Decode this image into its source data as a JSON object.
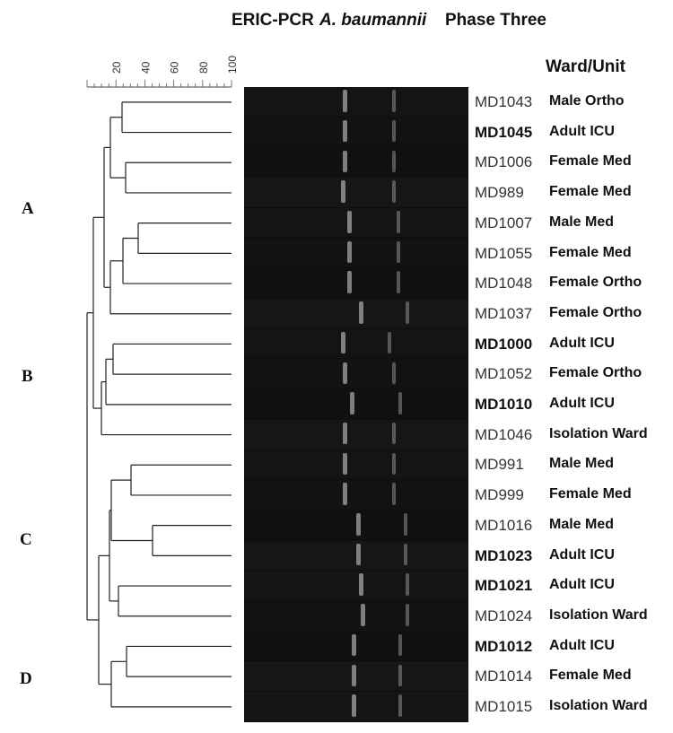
{
  "title": {
    "part1": "ERIC-PCR",
    "organism": "A. baumannii",
    "phase": "Phase Three"
  },
  "column_header": "Ward/Unit",
  "similarity_scale": {
    "ticks": [
      "20",
      "40",
      "60",
      "80",
      "100"
    ]
  },
  "clusters": [
    {
      "label": "A"
    },
    {
      "label": "B"
    },
    {
      "label": "C"
    },
    {
      "label": "D"
    }
  ],
  "samples": [
    {
      "id": "MD1043",
      "ward": "Male Ortho",
      "bold": false
    },
    {
      "id": "MD1045",
      "ward": "Adult ICU",
      "bold": true
    },
    {
      "id": "MD1006",
      "ward": "Female Med",
      "bold": false
    },
    {
      "id": "MD989",
      "ward": "Female Med",
      "bold": false
    },
    {
      "id": "MD1007",
      "ward": "Male Med",
      "bold": false
    },
    {
      "id": "MD1055",
      "ward": "Female Med",
      "bold": false
    },
    {
      "id": "MD1048",
      "ward": "Female Ortho",
      "bold": false
    },
    {
      "id": "MD1037",
      "ward": "Female Ortho",
      "bold": false
    },
    {
      "id": "MD1000",
      "ward": "Adult ICU",
      "bold": true
    },
    {
      "id": "MD1052",
      "ward": "Female Ortho",
      "bold": false
    },
    {
      "id": "MD1010",
      "ward": "Adult ICU",
      "bold": true
    },
    {
      "id": "MD1046",
      "ward": "Isolation Ward",
      "bold": false
    },
    {
      "id": "MD991",
      "ward": "Male Med",
      "bold": false
    },
    {
      "id": "MD999",
      "ward": "Female Med",
      "bold": false
    },
    {
      "id": "MD1016",
      "ward": "Male Med",
      "bold": false
    },
    {
      "id": "MD1023",
      "ward": "Adult ICU",
      "bold": true
    },
    {
      "id": "MD1021",
      "ward": "Adult ICU",
      "bold": true
    },
    {
      "id": "MD1024",
      "ward": "Isolation Ward",
      "bold": false
    },
    {
      "id": "MD1012",
      "ward": "Adult ICU",
      "bold": true
    },
    {
      "id": "MD1014",
      "ward": "Female Med",
      "bold": false
    },
    {
      "id": "MD1015",
      "ward": "Isolation Ward",
      "bold": false
    }
  ],
  "colors": {
    "gel_background": "#0e0e0e",
    "band": "#d8d8d8",
    "dendrogram_line": "#222222"
  }
}
